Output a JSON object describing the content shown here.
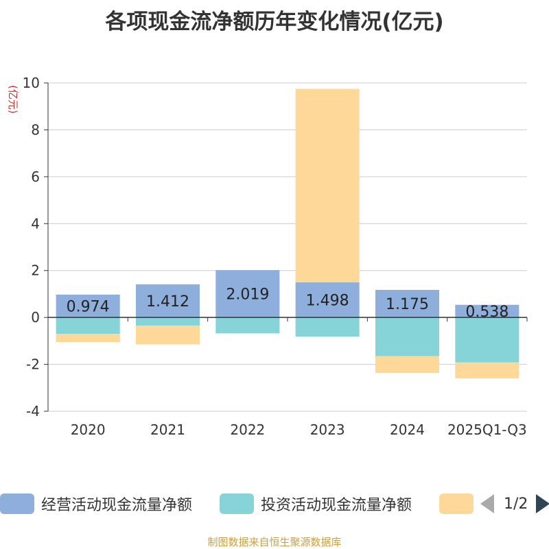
{
  "title": "各项现金流净额历年变化情况(亿元)",
  "y_unit": "(亿元)",
  "source": "制图数据来自恒生聚源数据库",
  "legend": {
    "items": [
      {
        "label": "经营活动现金流量净额",
        "color": "#8eafdc"
      },
      {
        "label": "投资活动现金流量净额",
        "color": "#86d4d7"
      },
      {
        "label": "",
        "color": "#fdd898"
      }
    ],
    "page_text": "1/2"
  },
  "chart_data": {
    "type": "bar",
    "stacked": true,
    "title": "各项现金流净额历年变化情况(亿元)",
    "ylabel": "(亿元)",
    "ylim": [
      -4,
      10
    ],
    "yticks": [
      -4,
      -2,
      0,
      2,
      4,
      6,
      8,
      10
    ],
    "categories": [
      "2020",
      "2021",
      "2022",
      "2023",
      "2024",
      "2025Q1-Q3"
    ],
    "series": [
      {
        "name": "经营活动现金流量净额",
        "color": "#8eafdc",
        "values": [
          0.974,
          1.412,
          2.019,
          1.498,
          1.175,
          0.538
        ],
        "labels": [
          "0.974",
          "1.412",
          "2.019",
          "1.498",
          "1.175",
          "0.538"
        ]
      },
      {
        "name": "投资活动现金流量净额",
        "color": "#86d4d7",
        "values": [
          -0.7,
          -0.35,
          -0.68,
          -0.82,
          -1.65,
          -1.92
        ]
      },
      {
        "name": "",
        "color": "#fdd898",
        "values": [
          -0.35,
          -0.8,
          0,
          8.25,
          -0.72,
          -0.68
        ]
      }
    ]
  }
}
